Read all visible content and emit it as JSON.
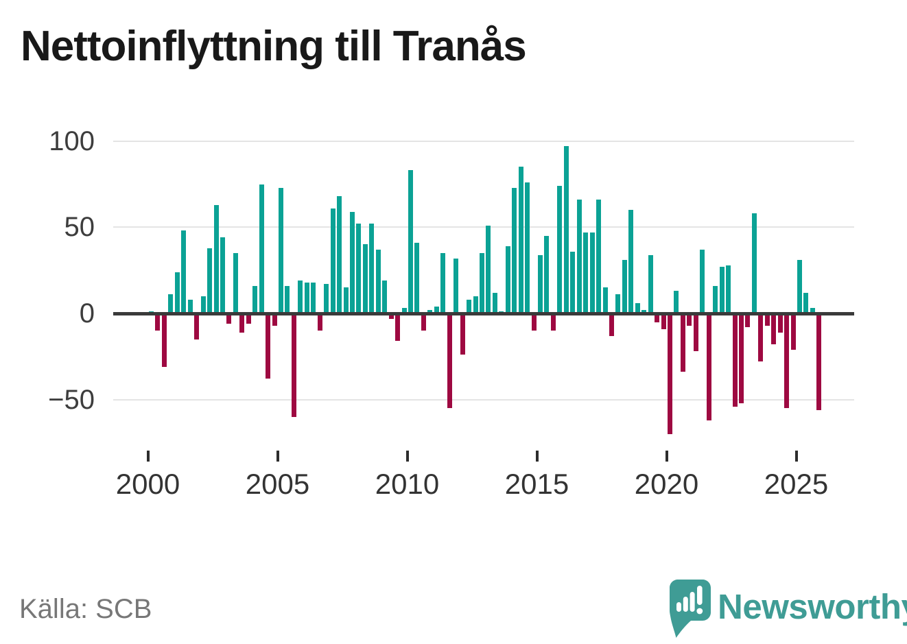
{
  "header": {
    "title": "Nettoinflyttning till Tranås"
  },
  "footer": {
    "source": "Källa: SCB",
    "brand": "Newsworthy"
  },
  "colors": {
    "positive": "#0ba295",
    "negative": "#9e0941",
    "zero_line": "#3a3a3a",
    "gridline": "#e4e4e4",
    "axis_text": "#3d3d3d",
    "title_text": "#191919",
    "source_text": "#777777",
    "brand_teal": "#3f9c95"
  },
  "chart_data": {
    "type": "bar",
    "title": "Nettoinflyttning till Tranås",
    "x_period": "quarterly",
    "x_range": [
      "2000 Q1",
      "2025 Q4"
    ],
    "grid": "horizontal",
    "legend": "none",
    "ylim": [
      -75,
      105
    ],
    "yticks": [
      {
        "label": "100",
        "value": 100
      },
      {
        "label": "50",
        "value": 50
      },
      {
        "label": "0",
        "value": 0
      },
      {
        "label": "−50",
        "value": -50
      }
    ],
    "xticks": [
      {
        "label": "2000",
        "value": 2000
      },
      {
        "label": "2005",
        "value": 2005
      },
      {
        "label": "2010",
        "value": 2010
      },
      {
        "label": "2015",
        "value": 2015
      },
      {
        "label": "2020",
        "value": 2020
      },
      {
        "label": "2025",
        "value": 2025
      }
    ],
    "series_by_year": [
      {
        "year": 2000,
        "quarters": [
          1,
          -10,
          -31,
          11
        ]
      },
      {
        "year": 2001,
        "quarters": [
          24,
          48,
          8,
          -15
        ]
      },
      {
        "year": 2002,
        "quarters": [
          10,
          38,
          63,
          44
        ]
      },
      {
        "year": 2003,
        "quarters": [
          -6,
          35,
          -11,
          -6
        ]
      },
      {
        "year": 2004,
        "quarters": [
          16,
          75,
          -38,
          -7
        ]
      },
      {
        "year": 2005,
        "quarters": [
          73,
          16,
          -60,
          19
        ]
      },
      {
        "year": 2006,
        "quarters": [
          18,
          18,
          -10,
          17
        ]
      },
      {
        "year": 2007,
        "quarters": [
          61,
          68,
          15,
          59
        ]
      },
      {
        "year": 2008,
        "quarters": [
          52,
          40,
          52,
          37
        ]
      },
      {
        "year": 2009,
        "quarters": [
          19,
          -3,
          -16,
          3
        ]
      },
      {
        "year": 2010,
        "quarters": [
          83,
          41,
          -10,
          2
        ]
      },
      {
        "year": 2011,
        "quarters": [
          4,
          35,
          -55,
          32
        ]
      },
      {
        "year": 2012,
        "quarters": [
          -24,
          8,
          10,
          35
        ]
      },
      {
        "year": 2013,
        "quarters": [
          51,
          12,
          1,
          39
        ]
      },
      {
        "year": 2014,
        "quarters": [
          73,
          85,
          76,
          -10
        ]
      },
      {
        "year": 2015,
        "quarters": [
          34,
          45,
          -10,
          74
        ]
      },
      {
        "year": 2016,
        "quarters": [
          97,
          36,
          66,
          47
        ]
      },
      {
        "year": 2017,
        "quarters": [
          47,
          66,
          15,
          -13
        ]
      },
      {
        "year": 2018,
        "quarters": [
          11,
          31,
          60,
          6
        ]
      },
      {
        "year": 2019,
        "quarters": [
          2,
          34,
          -5,
          -9
        ]
      },
      {
        "year": 2020,
        "quarters": [
          -70,
          13,
          -34,
          -7
        ]
      },
      {
        "year": 2021,
        "quarters": [
          -22,
          37,
          -62,
          16
        ]
      },
      {
        "year": 2022,
        "quarters": [
          27,
          28,
          -54,
          -52
        ]
      },
      {
        "year": 2023,
        "quarters": [
          -8,
          58,
          -28,
          -7
        ]
      },
      {
        "year": 2024,
        "quarters": [
          -18,
          -11,
          -55,
          -21
        ]
      },
      {
        "year": 2025,
        "quarters": [
          31,
          12,
          3,
          -56
        ]
      }
    ]
  }
}
